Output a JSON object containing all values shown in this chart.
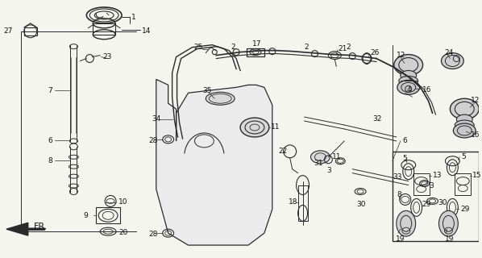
{
  "background_color": "#f5f5f0",
  "line_color": "#2a2a2a",
  "text_color": "#111111",
  "fig_width": 5.98,
  "fig_height": 3.2,
  "dpi": 100
}
